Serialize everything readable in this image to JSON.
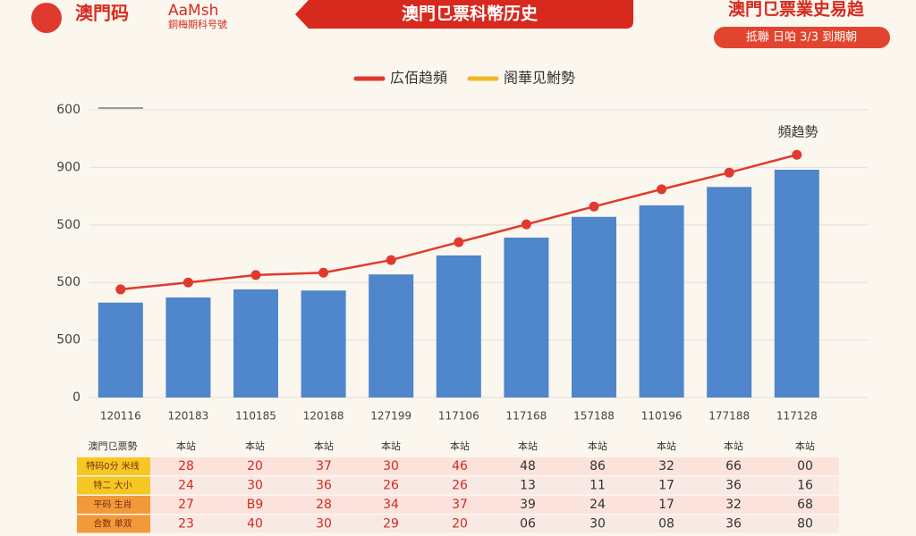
{
  "header": {
    "logo": "澳門码",
    "logo_en": "AaMsh",
    "logo_sub": "銅梅期科号號",
    "banner": "澳門㔾票科幣历史",
    "right_title": "澳門㔾票業史易趋",
    "right_pill": "抵聯 日㕷 3/3 到期朝"
  },
  "chart_data": {
    "type": "bar-line",
    "categories": [
      "120116",
      "120183",
      "110185",
      "120188",
      "127199",
      "117106",
      "117168",
      "157188",
      "110196",
      "177188",
      "117128"
    ],
    "series": [
      {
        "name": "広佰趋頻",
        "color": "#e03a2f",
        "kind": "line",
        "values": [
          1.88,
          2.0,
          2.13,
          2.17,
          2.39,
          2.7,
          3.01,
          3.32,
          3.62,
          3.91,
          4.22
        ]
      },
      {
        "name": "阁華见鮒勢",
        "color": "#f2b824",
        "kind": "bar",
        "values": [
          1.65,
          1.74,
          1.88,
          1.86,
          2.14,
          2.47,
          2.78,
          3.14,
          3.34,
          3.66,
          3.96
        ]
      }
    ],
    "bar_color": "#4f86cc",
    "ylim": [
      0,
      5
    ],
    "yticks": [
      0,
      {
        "value": 1,
        "label": "500"
      },
      {
        "value": 2,
        "label": "500"
      },
      {
        "value": 3,
        "label": "500"
      },
      {
        "value": 4,
        "label": "900"
      },
      {
        "value": 5,
        "label": "600"
      }
    ],
    "grid": true,
    "annotation": "頻趋勢"
  },
  "table": {
    "header": [
      "澳門㔾票勢",
      "本站",
      "本站",
      "本站",
      "本站",
      "本站",
      "本站",
      "本站",
      "本站",
      "本站",
      "本站"
    ],
    "rows": [
      [
        "特码0分 米线",
        "28",
        "20",
        "37",
        "30",
        "46",
        "48",
        "86",
        "32",
        "66",
        "00"
      ],
      [
        "特二 大小",
        "24",
        "30",
        "36",
        "26",
        "26",
        "13",
        "11",
        "17",
        "36",
        "16"
      ],
      [
        "平码 生肖",
        "27",
        "B9",
        "28",
        "34",
        "37",
        "39",
        "24",
        "17",
        "32",
        "68"
      ],
      [
        "合数 单双",
        "23",
        "40",
        "30",
        "29",
        "20",
        "06",
        "30",
        "08",
        "36",
        "80"
      ]
    ]
  }
}
